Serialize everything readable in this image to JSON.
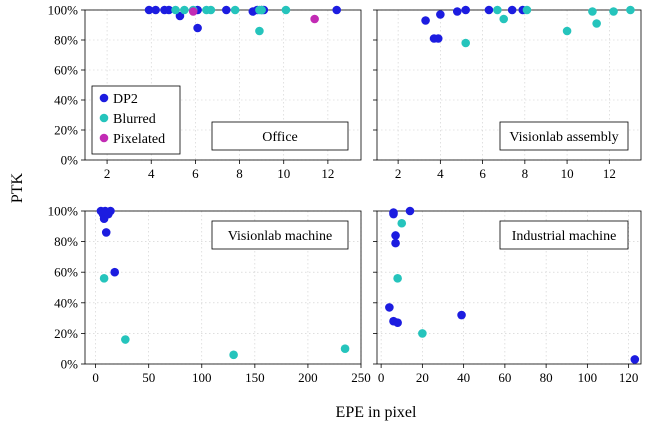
{
  "figure": {
    "ylabel": "PTK",
    "xlabel": "EPE in pixel"
  },
  "legend": {
    "placement": "bottom-left of Office panel",
    "entries": [
      {
        "name": "DP2",
        "color": "#1c1ce0"
      },
      {
        "name": "Blurred",
        "color": "#25c4bc"
      },
      {
        "name": "Pixelated",
        "color": "#c22bb4"
      }
    ]
  },
  "chart_data": [
    {
      "type": "scatter",
      "panel_label": "Office",
      "xlim": [
        1,
        13.5
      ],
      "ylim": [
        0,
        100
      ],
      "xticks": [
        2,
        4,
        6,
        8,
        10,
        12
      ],
      "yticks": [
        0,
        20,
        40,
        60,
        80,
        100
      ],
      "ytick_labels": [
        "0%",
        "20%",
        "40%",
        "60%",
        "80%",
        "100%"
      ],
      "show_xtick_labels": true,
      "show_ytick_labels": true,
      "grid": true,
      "series": [
        {
          "name": "DP2",
          "color": "#1c1ce0",
          "points": [
            [
              3.9,
              100
            ],
            [
              4.2,
              100
            ],
            [
              4.6,
              100
            ],
            [
              4.8,
              100
            ],
            [
              5.3,
              96
            ],
            [
              6.1,
              100
            ],
            [
              6.1,
              88
            ],
            [
              7.4,
              100
            ],
            [
              8.6,
              99
            ],
            [
              8.8,
              100
            ],
            [
              9.0,
              100
            ],
            [
              9.1,
              100
            ],
            [
              12.4,
              100
            ]
          ]
        },
        {
          "name": "Blurred",
          "color": "#25c4bc",
          "points": [
            [
              5.1,
              100
            ],
            [
              5.5,
              100
            ],
            [
              5.9,
              100
            ],
            [
              6.5,
              100
            ],
            [
              6.7,
              100
            ],
            [
              7.8,
              100
            ],
            [
              8.9,
              100
            ],
            [
              8.9,
              86
            ],
            [
              9.0,
              100
            ],
            [
              10.1,
              100
            ]
          ]
        },
        {
          "name": "Pixelated",
          "color": "#c22bb4",
          "points": [
            [
              5.9,
              99
            ],
            [
              11.4,
              94
            ]
          ]
        }
      ]
    },
    {
      "type": "scatter",
      "panel_label": "Visionlab assembly",
      "xlim": [
        1,
        13.5
      ],
      "ylim": [
        0,
        100
      ],
      "xticks": [
        2,
        4,
        6,
        8,
        10,
        12
      ],
      "yticks": [
        0,
        20,
        40,
        60,
        80,
        100
      ],
      "show_xtick_labels": true,
      "show_ytick_labels": false,
      "grid": true,
      "series": [
        {
          "name": "DP2",
          "color": "#1c1ce0",
          "points": [
            [
              3.3,
              93
            ],
            [
              3.7,
              81
            ],
            [
              3.9,
              81
            ],
            [
              4.0,
              97
            ],
            [
              4.8,
              99
            ],
            [
              5.2,
              100
            ],
            [
              6.3,
              100
            ],
            [
              7.4,
              100
            ],
            [
              7.9,
              100
            ]
          ]
        },
        {
          "name": "Blurred",
          "color": "#25c4bc",
          "points": [
            [
              5.2,
              78
            ],
            [
              6.7,
              100
            ],
            [
              7.0,
              94
            ],
            [
              8.1,
              100
            ],
            [
              10.0,
              86
            ],
            [
              11.2,
              99
            ],
            [
              11.4,
              91
            ],
            [
              12.2,
              99
            ],
            [
              13.0,
              100
            ]
          ]
        }
      ]
    },
    {
      "type": "scatter",
      "panel_label": "Visionlab machine",
      "xlim": [
        -10,
        250
      ],
      "ylim": [
        0,
        100
      ],
      "xticks": [
        0,
        50,
        100,
        150,
        200,
        250
      ],
      "yticks": [
        0,
        20,
        40,
        60,
        80,
        100
      ],
      "ytick_labels": [
        "0%",
        "20%",
        "40%",
        "60%",
        "80%",
        "100%"
      ],
      "show_xtick_labels": true,
      "show_ytick_labels": true,
      "grid": true,
      "series": [
        {
          "name": "DP2",
          "color": "#1c1ce0",
          "points": [
            [
              5,
              100
            ],
            [
              7,
              98
            ],
            [
              8,
              95
            ],
            [
              9,
              100
            ],
            [
              10,
              86
            ],
            [
              12,
              98
            ],
            [
              14,
              100
            ],
            [
              18,
              60
            ]
          ]
        },
        {
          "name": "Blurred",
          "color": "#25c4bc",
          "points": [
            [
              8,
              56
            ],
            [
              28,
              16
            ],
            [
              130,
              6
            ],
            [
              235,
              10
            ]
          ]
        }
      ]
    },
    {
      "type": "scatter",
      "panel_label": "Industrial machine",
      "xlim": [
        -2,
        126
      ],
      "ylim": [
        0,
        100
      ],
      "xticks": [
        0,
        20,
        40,
        60,
        80,
        100,
        120
      ],
      "yticks": [
        0,
        20,
        40,
        60,
        80,
        100
      ],
      "show_xtick_labels": true,
      "show_ytick_labels": false,
      "grid": true,
      "series": [
        {
          "name": "DP2",
          "color": "#1c1ce0",
          "points": [
            [
              6,
              99
            ],
            [
              6,
              98
            ],
            [
              7,
              84
            ],
            [
              7,
              79
            ],
            [
              4,
              37
            ],
            [
              6,
              28
            ],
            [
              8,
              27
            ],
            [
              14,
              100
            ],
            [
              39,
              32
            ],
            [
              123,
              3
            ]
          ]
        },
        {
          "name": "Blurred",
          "color": "#25c4bc",
          "points": [
            [
              10,
              92
            ],
            [
              8,
              56
            ],
            [
              20,
              20
            ]
          ]
        }
      ]
    }
  ]
}
